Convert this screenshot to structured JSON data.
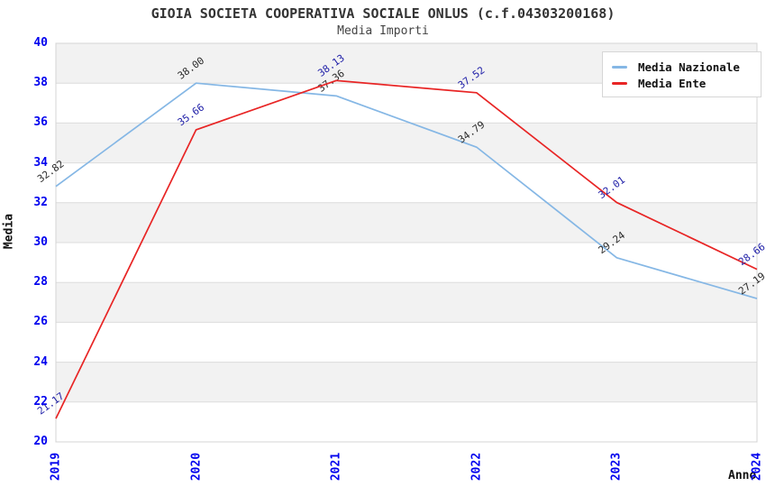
{
  "chart_data": {
    "type": "line",
    "title": "GIOIA SOCIETA COOPERATIVA SOCIALE ONLUS (c.f.04303200168)",
    "subtitle": "Media Importi",
    "xlabel": "Anno",
    "ylabel": "Media",
    "categories": [
      "2019",
      "2020",
      "2021",
      "2022",
      "2023",
      "2024"
    ],
    "series": [
      {
        "name": "Media Nazionale",
        "color": "#85b7e5",
        "label_color": "#2a2a2a",
        "values": [
          32.82,
          38.0,
          37.36,
          34.79,
          29.24,
          27.19
        ]
      },
      {
        "name": "Media Ente",
        "color": "#e82525",
        "label_color": "#2020a8",
        "values": [
          21.17,
          35.66,
          38.13,
          37.52,
          32.01,
          28.66
        ]
      }
    ],
    "ylim": [
      20,
      40
    ],
    "ytick_step": 2,
    "yticks": [
      20,
      22,
      24,
      26,
      28,
      30,
      32,
      34,
      36,
      38,
      40
    ],
    "grid": "horizontal-bands",
    "legend_position": "top-right",
    "tick_color": "#0000ee",
    "band_color": "#f2f2f2",
    "gridline_color": "#dcdcdc",
    "border_color": "#d4d4d4",
    "data_label_format": "2-decimals",
    "data_label_rotation_deg": -36
  }
}
